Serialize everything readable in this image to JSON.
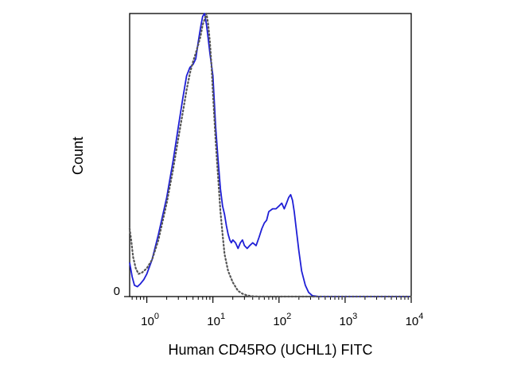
{
  "chart_data": {
    "type": "line",
    "title": "",
    "xlabel": "Human CD45RO (UCHL1) FITC",
    "ylabel": "Count",
    "x_scale": "log",
    "xlim": [
      0.55,
      10000
    ],
    "ylim": [
      0,
      100
    ],
    "x_ticks": [
      {
        "base": "10",
        "exp": "0",
        "value": 1
      },
      {
        "base": "10",
        "exp": "1",
        "value": 10
      },
      {
        "base": "10",
        "exp": "2",
        "value": 100
      },
      {
        "base": "10",
        "exp": "3",
        "value": 1000
      },
      {
        "base": "10",
        "exp": "4",
        "value": 10000
      }
    ],
    "y_ticks": [
      {
        "label": "0",
        "value": 0
      }
    ],
    "grid": false,
    "series": [
      {
        "style": "solid",
        "color": "#1f1fd6",
        "x": [
          0.55,
          0.6,
          0.65,
          0.72,
          0.8,
          0.9,
          1.0,
          1.2,
          1.5,
          2.0,
          2.5,
          3.0,
          3.5,
          4.0,
          4.5,
          5.0,
          5.5,
          6.0,
          6.5,
          7.0,
          7.5,
          8.0,
          8.5,
          9.0,
          9.5,
          10.0,
          11.0,
          12.0,
          13.0,
          14.0,
          15.0,
          16.0,
          17.0,
          18.0,
          19.0,
          20.0,
          22.0,
          24.0,
          26.0,
          28.0,
          30.0,
          33.0,
          36.0,
          40.0,
          45.0,
          50.0,
          55.0,
          60.0,
          65.0,
          70.0,
          80.0,
          90.0,
          100.0,
          110.0,
          120.0,
          130.0,
          140.0,
          150.0,
          160.0,
          170.0,
          180.0,
          200.0,
          220.0,
          250.0,
          280.0,
          320.0,
          400.0,
          600.0,
          1000.0,
          10000.0
        ],
        "y": [
          12.0,
          7.0,
          4.0,
          3.5,
          4.5,
          6.0,
          8.0,
          13.0,
          22.0,
          35.0,
          48.0,
          60.0,
          70.0,
          78.0,
          81.0,
          82.0,
          84.0,
          90.0,
          95.0,
          99.0,
          100.0,
          96.0,
          91.0,
          86.0,
          82.0,
          78.0,
          60.0,
          48.0,
          38.0,
          32.0,
          29.0,
          25.0,
          22.0,
          20.0,
          19.0,
          20.0,
          19.0,
          17.0,
          19.0,
          20.0,
          18.0,
          17.0,
          18.0,
          19.0,
          18.0,
          21.0,
          24.0,
          26.0,
          27.0,
          30.0,
          31.0,
          31.0,
          32.0,
          33.0,
          31.0,
          33.0,
          35.0,
          36.0,
          34.0,
          30.0,
          25.0,
          16.0,
          9.0,
          4.0,
          1.5,
          0.3,
          0.0,
          0.0,
          0.0,
          0.0
        ]
      },
      {
        "style": "dotted",
        "color": "#555555",
        "x": [
          0.55,
          0.58,
          0.62,
          0.68,
          0.75,
          0.85,
          1.0,
          1.2,
          1.5,
          2.0,
          2.5,
          3.0,
          3.5,
          4.0,
          4.5,
          5.0,
          5.5,
          6.0,
          6.5,
          7.0,
          7.5,
          8.0,
          8.5,
          9.0,
          9.5,
          10.0,
          11.0,
          12.0,
          13.0,
          14.0,
          15.0,
          17.0,
          20.0,
          24.0,
          28.0,
          33.0,
          40.0,
          50.0,
          10000.0
        ],
        "y": [
          24.0,
          20.0,
          14.0,
          10.0,
          8.0,
          8.5,
          10.0,
          13.0,
          20.0,
          33.0,
          45.0,
          56.0,
          65.0,
          73.0,
          79.0,
          83.0,
          86.0,
          89.0,
          92.0,
          96.0,
          98.0,
          100.0,
          96.0,
          90.0,
          82.0,
          72.0,
          55.0,
          42.0,
          30.0,
          22.0,
          15.0,
          9.0,
          5.0,
          2.0,
          1.0,
          0.4,
          0.1,
          0.0,
          0.0
        ]
      }
    ]
  }
}
